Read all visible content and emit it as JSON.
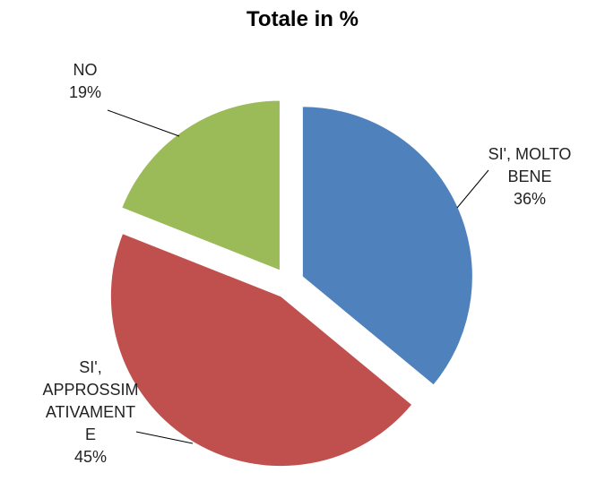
{
  "chart_data": {
    "type": "pie",
    "title": "Totale in %",
    "categories": [
      "SI', MOLTO BENE",
      "SI', APPROSSIMATIVAMENTE",
      "NO"
    ],
    "values": [
      36,
      45,
      19
    ],
    "value_labels": [
      "36%",
      "45%",
      "19%"
    ],
    "colors": [
      "#4f81bd",
      "#c0504d",
      "#9bbb59"
    ]
  }
}
